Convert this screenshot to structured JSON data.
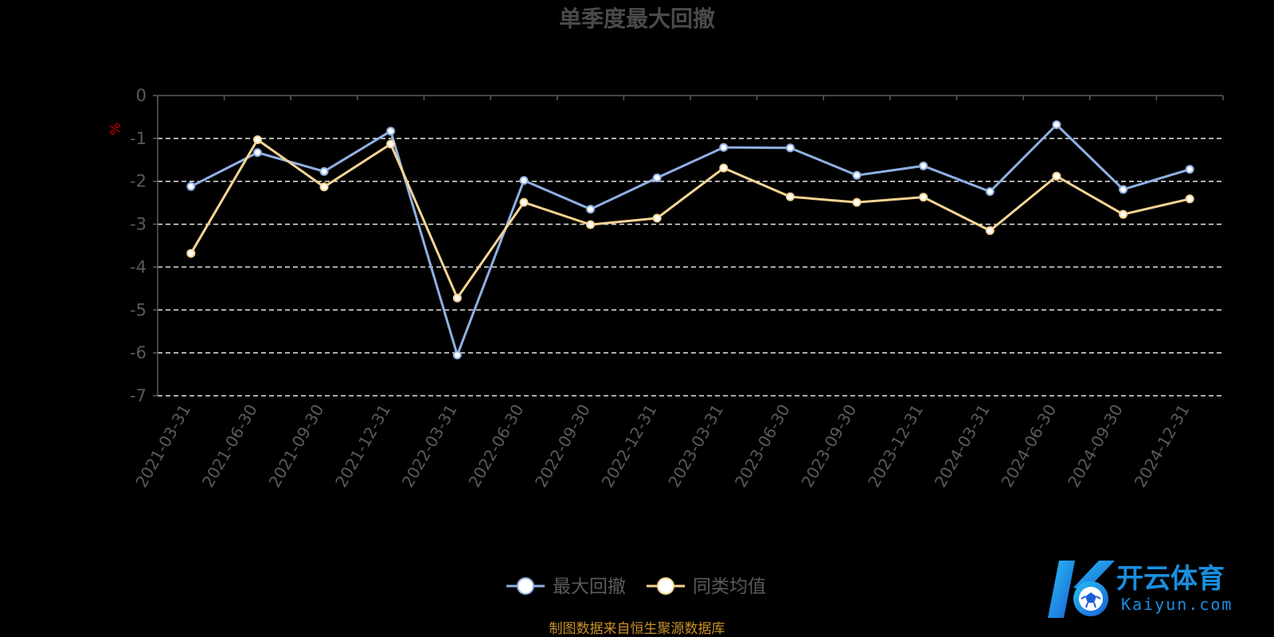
{
  "colors": {
    "background": "#000000",
    "series_max_drawdown": "#8fb0e3",
    "series_peer_avg": "#f7d494",
    "grid": "#e6e6e6",
    "axis": "#5a5a5a",
    "unit": "#cc0000",
    "source": "#c9902a",
    "logo": "#1a8fe0"
  },
  "chart_data": {
    "type": "line",
    "title": "单季度最大回撤",
    "ylabel": "%",
    "ylim": [
      -7,
      0
    ],
    "yticks": [
      0,
      -1,
      -2,
      -3,
      -4,
      -5,
      -6,
      -7
    ],
    "grid": "dashed horizontal",
    "legend_position": "bottom-center",
    "categories": [
      "2021-03-31",
      "2021-06-30",
      "2021-09-30",
      "2021-12-31",
      "2022-03-31",
      "2022-06-30",
      "2022-09-30",
      "2022-12-31",
      "2023-03-31",
      "2023-06-30",
      "2023-09-30",
      "2023-12-31",
      "2024-03-31",
      "2024-06-30",
      "2024-09-30",
      "2024-12-31"
    ],
    "series": [
      {
        "name": "最大回撤",
        "color_key": "series_max_drawdown",
        "values": [
          -2.12,
          -1.33,
          -1.77,
          -0.83,
          -6.05,
          -1.98,
          -2.65,
          -1.92,
          -1.21,
          -1.22,
          -1.86,
          -1.64,
          -2.24,
          -0.68,
          -2.19,
          -1.72
        ]
      },
      {
        "name": "同类均值",
        "color_key": "series_peer_avg",
        "values": [
          -3.68,
          -1.03,
          -2.13,
          -1.13,
          -4.72,
          -2.49,
          -3.01,
          -2.86,
          -1.69,
          -2.36,
          -2.49,
          -2.37,
          -3.15,
          -1.88,
          -2.77,
          -2.41
        ]
      }
    ]
  },
  "footer": {
    "source": "制图数据来自恒生聚源数据库"
  },
  "logo": {
    "name": "开云体育",
    "domain": "Kaiyun.com"
  }
}
